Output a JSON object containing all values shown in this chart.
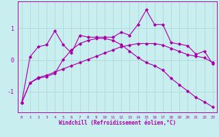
{
  "xlabel": "Windchill (Refroidissement éolien,°C)",
  "background_color": "#c8eef0",
  "line_color": "#aa00aa",
  "x": [
    0,
    1,
    2,
    3,
    4,
    5,
    6,
    7,
    8,
    9,
    10,
    11,
    12,
    13,
    14,
    15,
    16,
    17,
    18,
    19,
    20,
    21,
    22,
    23
  ],
  "line1": [
    -1.35,
    0.1,
    0.42,
    0.48,
    0.92,
    0.48,
    0.22,
    0.78,
    0.72,
    0.72,
    0.72,
    0.72,
    0.88,
    0.78,
    1.12,
    1.58,
    1.12,
    1.12,
    0.55,
    0.5,
    0.45,
    0.18,
    0.28,
    -0.12
  ],
  "line2": [
    -1.35,
    -0.72,
    -0.58,
    -0.52,
    -0.42,
    0.02,
    0.32,
    0.52,
    0.62,
    0.68,
    0.68,
    0.62,
    0.48,
    0.28,
    0.08,
    -0.08,
    -0.18,
    -0.32,
    -0.58,
    -0.78,
    -0.98,
    -1.18,
    -1.32,
    -1.48
  ],
  "line3": [
    -1.35,
    -0.72,
    -0.55,
    -0.48,
    -0.38,
    -0.28,
    -0.18,
    -0.08,
    0.02,
    0.12,
    0.22,
    0.32,
    0.42,
    0.47,
    0.52,
    0.52,
    0.52,
    0.47,
    0.37,
    0.27,
    0.17,
    0.12,
    0.07,
    -0.08
  ],
  "ylim": [
    -1.65,
    1.85
  ],
  "yticks": [
    -1,
    0,
    1
  ],
  "grid_color": "#b0d8d8",
  "grid_linewidth": 0.6
}
